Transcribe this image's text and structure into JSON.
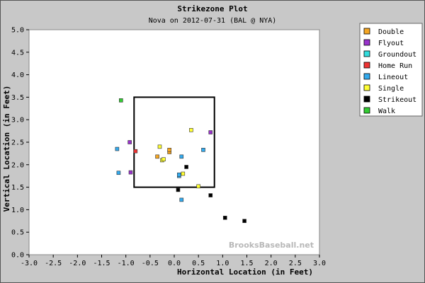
{
  "chart_data": {
    "type": "scatter",
    "title": "Strikezone Plot",
    "subtitle": "Nova on 2012-07-31 (BAL @ NYA)",
    "xlabel": "Horizontal Location (in Feet)",
    "ylabel": "Vertical Location (in Feet)",
    "xlim": [
      -3.0,
      3.0
    ],
    "ylim": [
      0.0,
      5.0
    ],
    "xticks": [
      "-3.0",
      "-2.5",
      "-2.0",
      "-1.5",
      "-1.0",
      "-0.5",
      "0.0",
      "0.5",
      "1.0",
      "1.5",
      "2.0",
      "2.5",
      "3.0"
    ],
    "yticks": [
      "0.0",
      "0.5",
      "1.0",
      "1.5",
      "2.0",
      "2.5",
      "3.0",
      "3.5",
      "4.0",
      "4.5",
      "5.0"
    ],
    "grid": false,
    "legend_position": "right",
    "strike_zone": {
      "x": [
        -0.83,
        0.83
      ],
      "y": [
        1.5,
        3.5
      ]
    },
    "watermark": "BrooksBaseball.net",
    "series": [
      {
        "name": "Double",
        "color": "#f5a623",
        "points": [
          [
            -0.35,
            2.18
          ],
          [
            -0.1,
            2.28
          ],
          [
            -0.1,
            2.33
          ]
        ]
      },
      {
        "name": "Flyout",
        "color": "#9933cc",
        "points": [
          [
            -0.92,
            2.5
          ],
          [
            -0.9,
            1.83
          ],
          [
            0.75,
            2.72
          ]
        ]
      },
      {
        "name": "Groundout",
        "color": "#33dddd",
        "points": [
          []
        ]
      },
      {
        "name": "Home Run",
        "color": "#ee3333",
        "points": [
          [
            -0.8,
            2.3
          ]
        ]
      },
      {
        "name": "Lineout",
        "color": "#33aaee",
        "points": [
          [
            -1.18,
            2.35
          ],
          [
            -1.15,
            1.82
          ],
          [
            0.15,
            2.18
          ],
          [
            0.1,
            1.75
          ],
          [
            0.1,
            1.78
          ],
          [
            0.6,
            2.33
          ],
          [
            0.15,
            1.22
          ]
        ]
      },
      {
        "name": "Single",
        "color": "#ffff33",
        "points": [
          [
            -0.25,
            2.1
          ],
          [
            -0.3,
            2.4
          ],
          [
            -0.22,
            2.12
          ],
          [
            0.18,
            1.8
          ],
          [
            0.35,
            2.77
          ],
          [
            0.5,
            1.52
          ]
        ]
      },
      {
        "name": "Strikeout",
        "color": "#000000",
        "points": [
          [
            0.25,
            1.95
          ],
          [
            0.08,
            1.44
          ],
          [
            0.75,
            1.32
          ],
          [
            1.05,
            0.82
          ],
          [
            1.45,
            0.75
          ]
        ]
      },
      {
        "name": "Walk",
        "color": "#33cc33",
        "points": [
          [
            -1.1,
            3.43
          ]
        ]
      }
    ]
  }
}
